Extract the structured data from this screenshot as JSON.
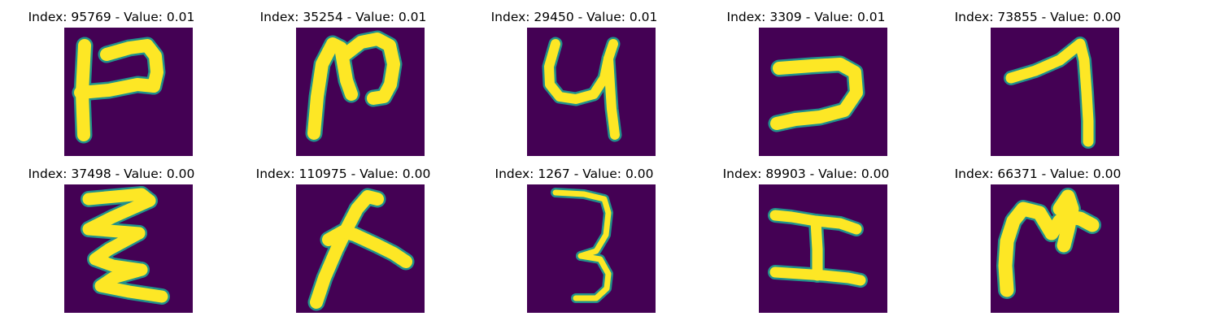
{
  "colors": {
    "background": "#440154",
    "edge": "#21918c",
    "ink": "#fde725"
  },
  "samples": [
    {
      "index": "95769",
      "value": "0.01",
      "title": "Index: 95769 - Value: 0.01"
    },
    {
      "index": "35254",
      "value": "0.01",
      "title": "Index: 35254 - Value: 0.01"
    },
    {
      "index": "29450",
      "value": "0.01",
      "title": "Index: 29450 - Value: 0.01"
    },
    {
      "index": "3309",
      "value": "0.01",
      "title": "Index: 3309 - Value: 0.01"
    },
    {
      "index": "73855",
      "value": "0.00",
      "title": "Index: 73855 - Value: 0.00"
    },
    {
      "index": "37498",
      "value": "0.00",
      "title": "Index: 37498 - Value: 0.00"
    },
    {
      "index": "110975",
      "value": "0.00",
      "title": "Index: 110975 - Value: 0.00"
    },
    {
      "index": "1267",
      "value": "0.00",
      "title": "Index: 1267 - Value: 0.00"
    },
    {
      "index": "89903",
      "value": "0.00",
      "title": "Index: 89903 - Value: 0.00"
    },
    {
      "index": "66371",
      "value": "0.00",
      "title": "Index: 66371 - Value: 0.00"
    }
  ]
}
